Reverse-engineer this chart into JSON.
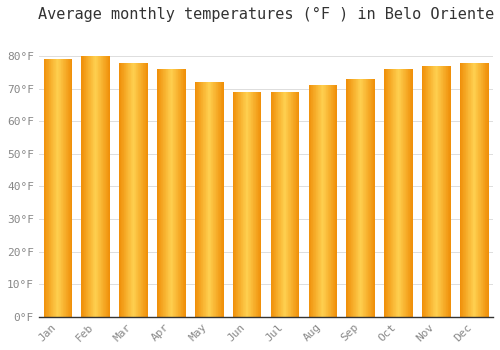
{
  "title": "Average monthly temperatures (°F ) in Belo Oriente",
  "months": [
    "Jan",
    "Feb",
    "Mar",
    "Apr",
    "May",
    "Jun",
    "Jul",
    "Aug",
    "Sep",
    "Oct",
    "Nov",
    "Dec"
  ],
  "values": [
    79,
    80,
    78,
    76,
    72,
    69,
    69,
    71,
    73,
    76,
    77,
    78
  ],
  "bar_color_center": "#FFD050",
  "bar_color_edge": "#F0900A",
  "background_color": "#FFFFFF",
  "grid_color": "#DDDDDD",
  "ylim": [
    0,
    88
  ],
  "yticks": [
    0,
    10,
    20,
    30,
    40,
    50,
    60,
    70,
    80
  ],
  "ytick_labels": [
    "0°F",
    "10°F",
    "20°F",
    "30°F",
    "40°F",
    "50°F",
    "60°F",
    "70°F",
    "80°F"
  ],
  "title_fontsize": 11,
  "tick_fontsize": 8,
  "font_family": "monospace"
}
